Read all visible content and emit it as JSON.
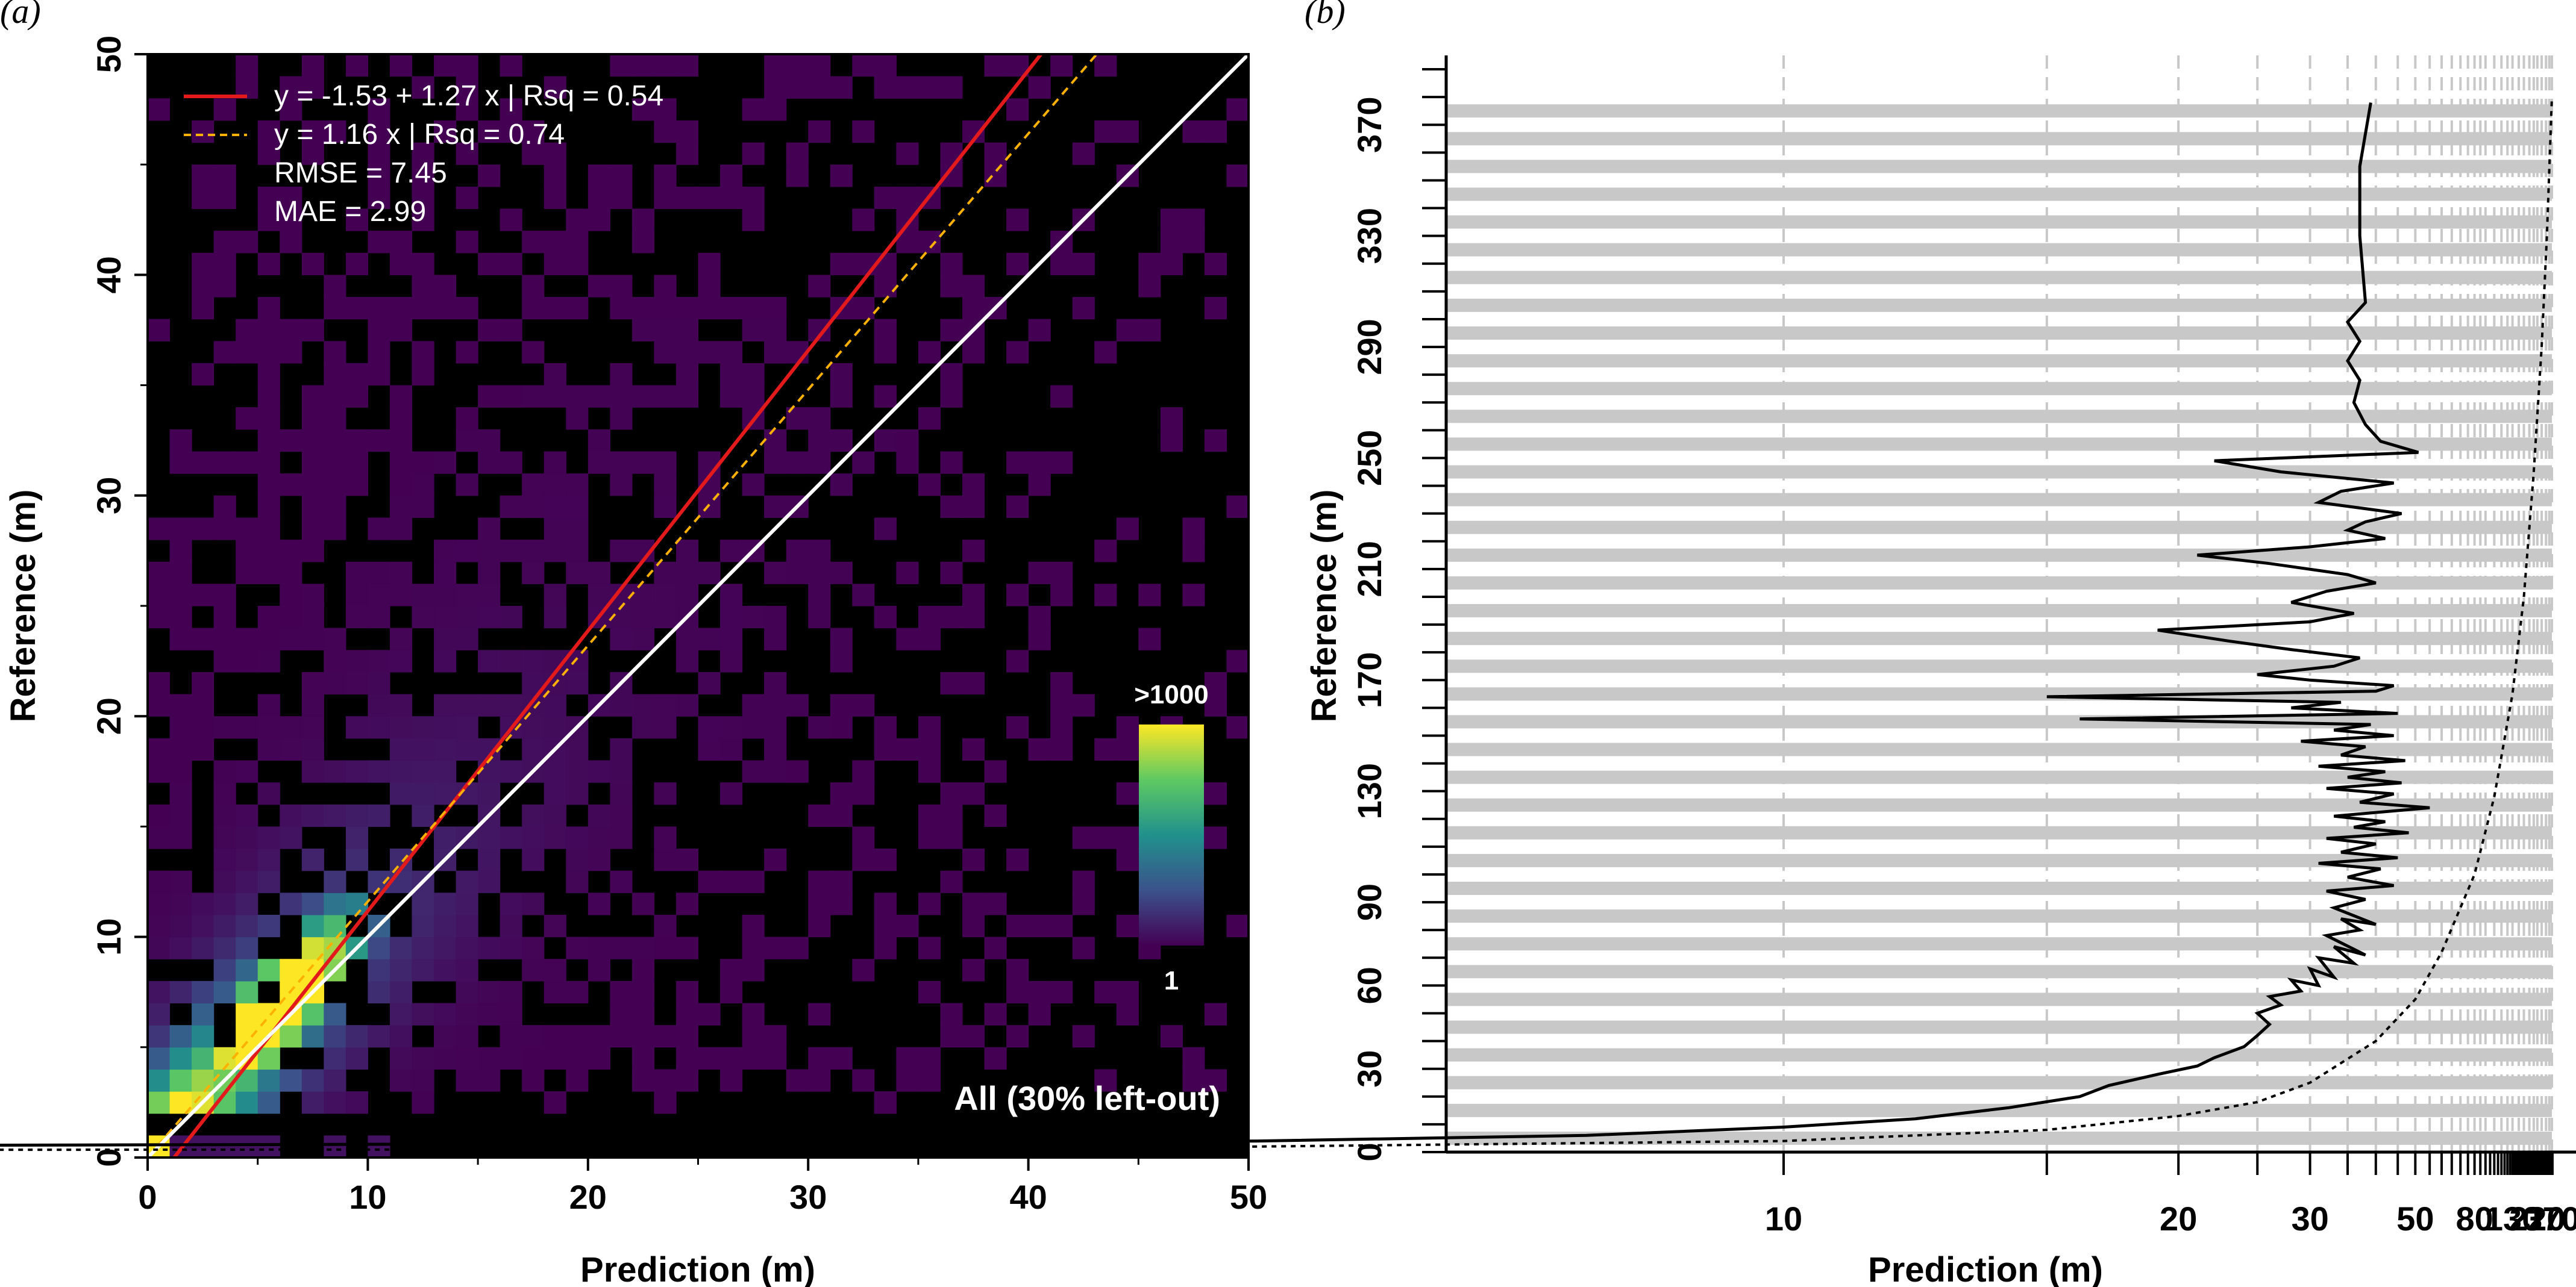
{
  "panel_a_label": "(a)",
  "panel_b_label": "(b)",
  "colors": {
    "background": "#000000",
    "heat_low": "#440154",
    "heat_high": "#fde725",
    "fit_line": "#e31a1c",
    "through_origin_line": "#ffb000",
    "identity_line": "#ffffff",
    "grid_dash": "#c8c8c8",
    "bar_fill": "#c8c8c8"
  },
  "chart_data": [
    {
      "type": "heatmap",
      "xlabel": "Prediction (m)",
      "ylabel": "Reference (m)",
      "xlim": [
        0,
        50
      ],
      "ylim": [
        0,
        50
      ],
      "xticks": [
        "0",
        "10",
        "20",
        "30",
        "40",
        "50"
      ],
      "yticks": [
        "0",
        "10",
        "20",
        "30",
        "40",
        "50"
      ],
      "bin_size": 1,
      "colorbar": {
        "max_label": ">1000",
        "min_label": "1"
      },
      "annotation": "All (30% left-out)",
      "legend": [
        {
          "text": "y = -1.53 + 1.27 x | Rsq = 0.54",
          "style": "solid-red"
        },
        {
          "text": "y = 1.16 x | Rsq = 0.74",
          "style": "dashed-orange"
        },
        {
          "text": "RMSE = 7.45",
          "style": "none"
        },
        {
          "text": "MAE = 2.99",
          "style": "none"
        }
      ],
      "lines": [
        {
          "name": "fit",
          "intercept": -1.53,
          "slope": 1.27
        },
        {
          "name": "through-origin",
          "intercept": 0,
          "slope": 1.16
        },
        {
          "name": "1:1",
          "intercept": 0,
          "slope": 1
        }
      ]
    },
    {
      "type": "line",
      "xlabel": "Prediction (m)",
      "ylabel": "Reference (m)",
      "x_scale": "reciprocal",
      "xticks": [
        10,
        20,
        30,
        50,
        80,
        130,
        220,
        370
      ],
      "yticks": [
        0,
        30,
        60,
        90,
        130,
        170,
        210,
        250,
        290,
        330,
        370
      ],
      "ylim": [
        0,
        395
      ],
      "grid_x": [
        5,
        10,
        15,
        20,
        25,
        30,
        35,
        40,
        45,
        50,
        55,
        60,
        65,
        70,
        75,
        80,
        85,
        90,
        100,
        110,
        120,
        130,
        145,
        160,
        180,
        200,
        220,
        250,
        290,
        330,
        370
      ],
      "series": [
        {
          "style": "solid",
          "points": [
            [
              1,
              0
            ],
            [
              1.5,
              1
            ],
            [
              2.5,
              2
            ],
            [
              4,
              3
            ],
            [
              6,
              4
            ],
            [
              8,
              6
            ],
            [
              10,
              9
            ],
            [
              12,
              12
            ],
            [
              14,
              16
            ],
            [
              16,
              20
            ],
            [
              17,
              24
            ],
            [
              19,
              28
            ],
            [
              21,
              31
            ],
            [
              22,
              34
            ],
            [
              24,
              38
            ],
            [
              25,
              42
            ],
            [
              26,
              46
            ],
            [
              25,
              50
            ],
            [
              27,
              53
            ],
            [
              26,
              56
            ],
            [
              29,
              58
            ],
            [
              28,
              62
            ],
            [
              31,
              60
            ],
            [
              30,
              66
            ],
            [
              33,
              63
            ],
            [
              31,
              70
            ],
            [
              36,
              68
            ],
            [
              33,
              74
            ],
            [
              38,
              71
            ],
            [
              32,
              78
            ],
            [
              37,
              80
            ],
            [
              34,
              84
            ],
            [
              40,
              82
            ],
            [
              33,
              88
            ],
            [
              38,
              91
            ],
            [
              32,
              94
            ],
            [
              44,
              96
            ],
            [
              35,
              99
            ],
            [
              41,
              102
            ],
            [
              31,
              104
            ],
            [
              45,
              106
            ],
            [
              34,
              108
            ],
            [
              40,
              111
            ],
            [
              32,
              113
            ],
            [
              48,
              115
            ],
            [
              36,
              117
            ],
            [
              42,
              119
            ],
            [
              33,
              121
            ],
            [
              55,
              124
            ],
            [
              37,
              126
            ],
            [
              44,
              129
            ],
            [
              32,
              131
            ],
            [
              46,
              133
            ],
            [
              35,
              135
            ],
            [
              42,
              137
            ],
            [
              31,
              139
            ],
            [
              47,
              141
            ],
            [
              34,
              143
            ],
            [
              38,
              146
            ],
            [
              29,
              148
            ],
            [
              44,
              150
            ],
            [
              33,
              152
            ],
            [
              39,
              154
            ],
            [
              16,
              156
            ],
            [
              45,
              158
            ],
            [
              28,
              160
            ],
            [
              34,
              162
            ],
            [
              15,
              164
            ],
            [
              40,
              166
            ],
            [
              44,
              168
            ],
            [
              30,
              170
            ],
            [
              25,
              172
            ],
            [
              33,
              175
            ],
            [
              37,
              178
            ],
            [
              28,
              181
            ],
            [
              23,
              184
            ],
            [
              19,
              188
            ],
            [
              30,
              191
            ],
            [
              36,
              194
            ],
            [
              28,
              198
            ],
            [
              32,
              202
            ],
            [
              40,
              205
            ],
            [
              35,
              208
            ],
            [
              26,
              212
            ],
            [
              21,
              215
            ],
            [
              30,
              218
            ],
            [
              42,
              221
            ],
            [
              35,
              224
            ],
            [
              38,
              227
            ],
            [
              46,
              230
            ],
            [
              31,
              234
            ],
            [
              34,
              238
            ],
            [
              44,
              241
            ],
            [
              27,
              245
            ],
            [
              22,
              249
            ],
            [
              51,
              252
            ],
            [
              41,
              256
            ],
            [
              38,
              262
            ],
            [
              36,
              270
            ],
            [
              37,
              278
            ],
            [
              35,
              285
            ],
            [
              37,
              292
            ],
            [
              35,
              299
            ],
            [
              38,
              306
            ],
            [
              37,
              330
            ],
            [
              37,
              355
            ],
            [
              39,
              378
            ]
          ]
        },
        {
          "style": "dotted",
          "points": [
            [
              1,
              0
            ],
            [
              5,
              1
            ],
            [
              10,
              4
            ],
            [
              15,
              8
            ],
            [
              20,
              13
            ],
            [
              25,
              18
            ],
            [
              30,
              25
            ],
            [
              40,
              40
            ],
            [
              50,
              55
            ],
            [
              60,
              72
            ],
            [
              80,
              100
            ],
            [
              100,
              128
            ],
            [
              130,
              165
            ],
            [
              160,
              200
            ],
            [
              200,
              245
            ],
            [
              250,
              290
            ],
            [
              300,
              330
            ],
            [
              370,
              380
            ]
          ]
        }
      ]
    }
  ]
}
